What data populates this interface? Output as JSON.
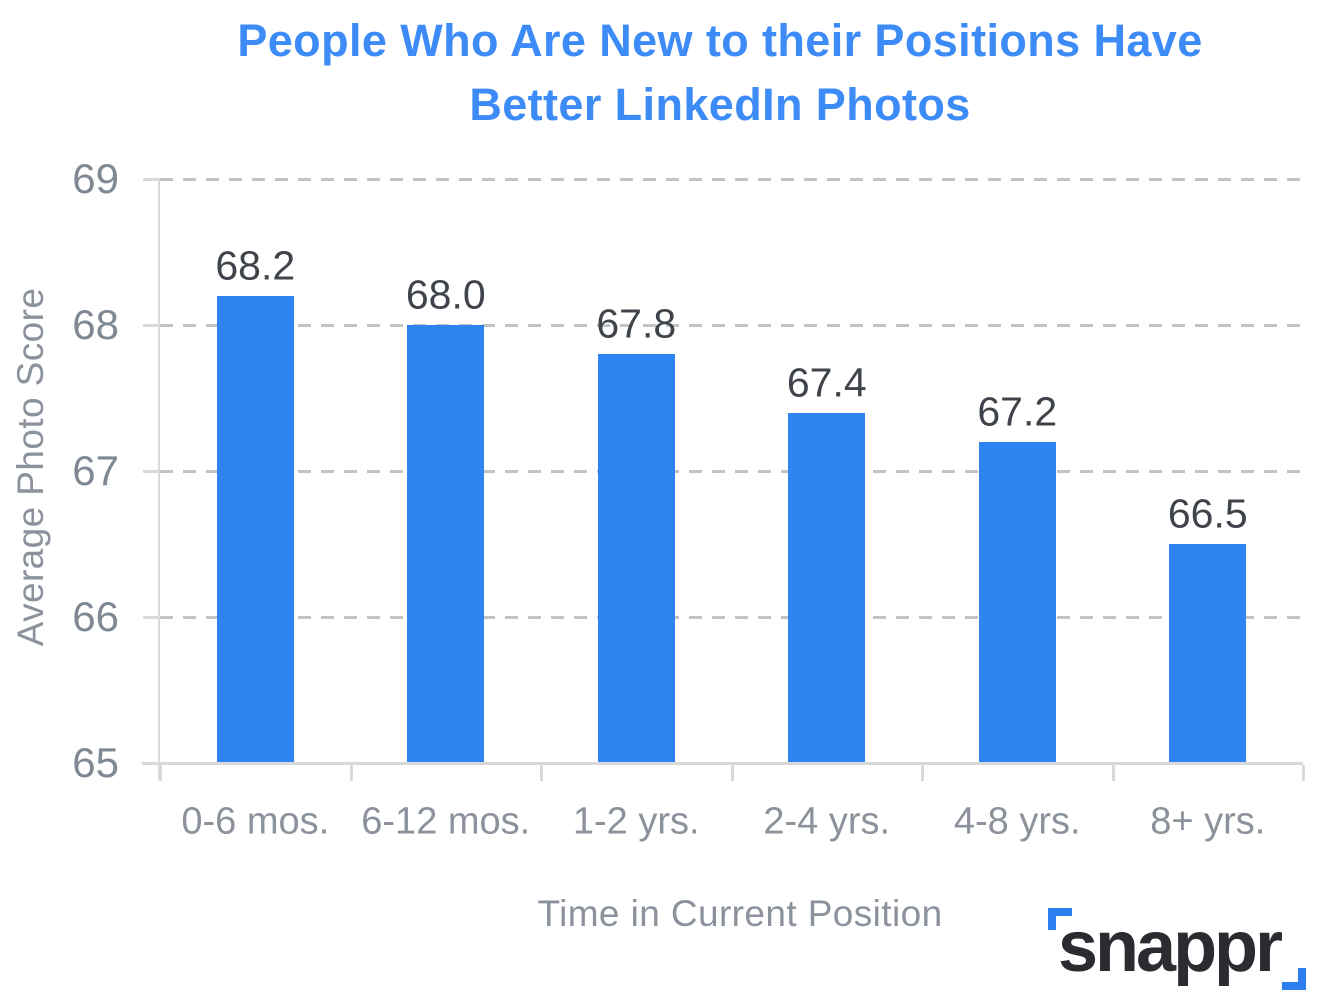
{
  "title_lines": [
    "People Who Are New to their Positions Have",
    "Better LinkedIn Photos"
  ],
  "logo": {
    "text": "snappr"
  },
  "colors": {
    "title": "#3d8bf7",
    "bar": "#2e85f2",
    "grid": "#c3c3c3",
    "axis": "#d9d9d9",
    "tick_label": "#7f8893",
    "axis_title": "#8b929c",
    "value_label": "#3f434a",
    "logo_text": "#2a2c32",
    "logo_accent": "#2d7ff0"
  },
  "chart_data": {
    "type": "bar",
    "title": "People Who Are New to their Positions Have Better LinkedIn Photos",
    "categories": [
      "0-6 mos.",
      "6-12 mos.",
      "1-2 yrs.",
      "2-4 yrs.",
      "4-8 yrs.",
      "8+ yrs."
    ],
    "values": [
      68.2,
      68.0,
      67.8,
      67.4,
      67.2,
      66.5
    ],
    "value_labels": [
      "68.2",
      "68.0",
      "67.8",
      "67.4",
      "67.2",
      "66.5"
    ],
    "xlabel": "Time in Current Position",
    "ylabel": "Average Photo Score",
    "ylim": [
      65,
      69
    ],
    "yticks": [
      69,
      68,
      67,
      66,
      65
    ],
    "grid": "horizontal-dashed",
    "legend": "none",
    "bar_color": "#2e85f2"
  }
}
